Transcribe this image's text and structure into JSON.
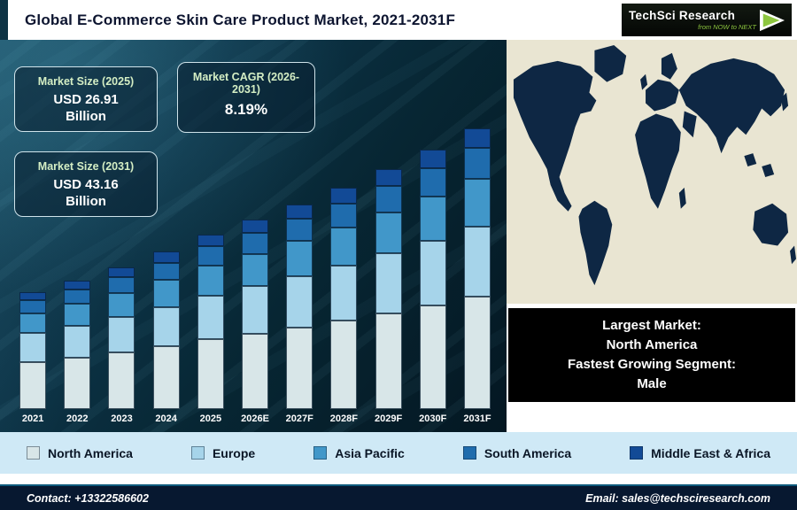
{
  "header": {
    "title": "Global E-Commerce Skin Care Product Market, 2021-2031F",
    "logo": {
      "name": "TechSci Research",
      "tagline": "from NOW to NEXT"
    }
  },
  "info_boxes": [
    {
      "title": "Market Size (2025)",
      "value": "USD 26.91",
      "unit": "Billion"
    },
    {
      "title": "Market CAGR (2026-2031)",
      "value": "8.19%"
    },
    {
      "title": "Market Size (2031)",
      "value": "USD 43.16",
      "unit": "Billion"
    }
  ],
  "chart_data": {
    "type": "bar",
    "stacked": true,
    "title": "Global E-Commerce Skin Care Product Market, 2021-2031F",
    "unit": "USD Billion",
    "categories": [
      "2021",
      "2022",
      "2023",
      "2024",
      "2025",
      "2026E",
      "2027F",
      "2028F",
      "2029F",
      "2030F",
      "2031F"
    ],
    "series": [
      {
        "name": "North America",
        "color": "#d8e6e8",
        "values": [
          7.2,
          7.92,
          8.72,
          9.68,
          10.76,
          11.64,
          12.6,
          13.63,
          14.75,
          15.96,
          17.26
        ]
      },
      {
        "name": "Europe",
        "color": "#a6d4ea",
        "values": [
          4.5,
          4.95,
          5.45,
          6.05,
          6.73,
          7.28,
          7.88,
          8.52,
          9.22,
          9.97,
          10.79
        ]
      },
      {
        "name": "Asia Pacific",
        "color": "#4197c9",
        "values": [
          3.06,
          3.37,
          3.71,
          4.11,
          4.57,
          4.95,
          5.36,
          5.79,
          6.27,
          6.78,
          7.34
        ]
      },
      {
        "name": "South America",
        "color": "#1f6cad",
        "values": [
          1.98,
          2.18,
          2.4,
          2.66,
          2.96,
          3.2,
          3.47,
          3.75,
          4.06,
          4.39,
          4.75
        ]
      },
      {
        "name": "Middle East & Africa",
        "color": "#124a96",
        "values": [
          1.26,
          1.39,
          1.53,
          1.69,
          1.88,
          2.04,
          2.21,
          2.39,
          2.58,
          2.79,
          3.02
        ]
      }
    ],
    "totals_estimated": [
      18.0,
      19.8,
      21.8,
      24.2,
      26.91,
      29.11,
      31.5,
      34.08,
      36.87,
      39.89,
      43.16
    ],
    "ylim": [
      0,
      50
    ],
    "legend_position": "bottom",
    "grid": false
  },
  "caption": {
    "lines": [
      "Largest Market:",
      "North America",
      "Fastest Growing Segment:",
      "Male"
    ]
  },
  "footer": {
    "contact": "Contact: +13322586602",
    "email": "Email: sales@techsciresearch.com"
  },
  "colors": {
    "chart_background_dark": "#072633",
    "legend_background": "#cfe9f6",
    "footer_background": "#071830",
    "map_ocean": "#e9e5d2",
    "map_land": "#0e2744",
    "info_box_title": "#d4eec4",
    "logo_green": "#8dc63f"
  }
}
